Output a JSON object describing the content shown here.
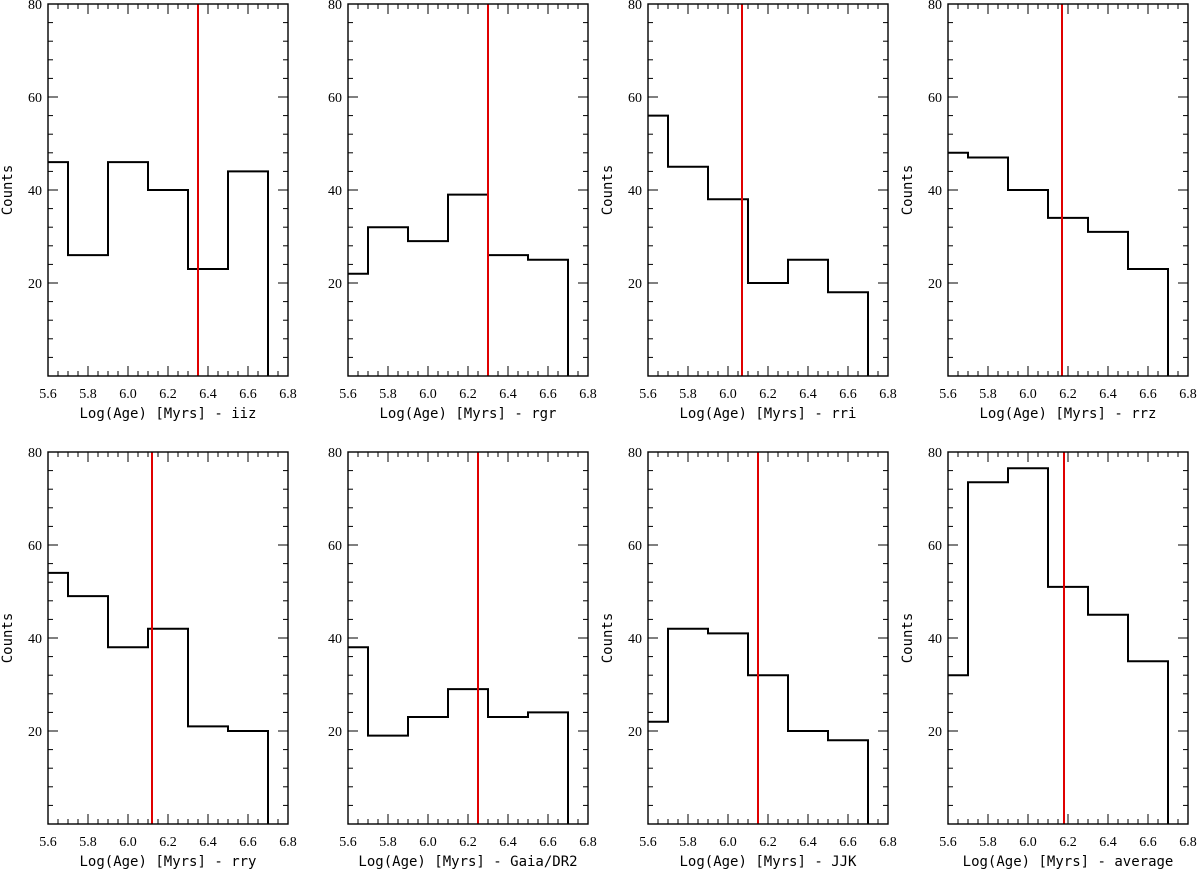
{
  "chart_data": [
    {
      "type": "histogram",
      "xlabel": "Log(Age) [Myrs] - iiz",
      "ylabel": "Counts",
      "xlim": [
        5.6,
        6.8
      ],
      "ylim": [
        0,
        80
      ],
      "xticks": [
        "5.6",
        "5.8",
        "6.0",
        "6.2",
        "6.4",
        "6.6",
        "6.8"
      ],
      "yticks": [
        "20",
        "40",
        "60",
        "80"
      ],
      "bin_edges": [
        5.6,
        5.7,
        5.9,
        6.1,
        6.3,
        6.5,
        6.7
      ],
      "counts": [
        46,
        26,
        46,
        40,
        23,
        44
      ],
      "marker_x": 6.35,
      "marker_color": "#e00000"
    },
    {
      "type": "histogram",
      "xlabel": "Log(Age) [Myrs] - rgr",
      "ylabel": "",
      "xlim": [
        5.6,
        6.8
      ],
      "ylim": [
        0,
        80
      ],
      "xticks": [
        "5.6",
        "5.8",
        "6.0",
        "6.2",
        "6.4",
        "6.6",
        "6.8"
      ],
      "yticks": [
        "20",
        "40",
        "60",
        "80"
      ],
      "bin_edges": [
        5.6,
        5.7,
        5.9,
        6.1,
        6.3,
        6.5,
        6.7
      ],
      "counts": [
        22,
        32,
        29,
        39,
        26,
        25
      ],
      "marker_x": 6.3,
      "marker_color": "#e00000"
    },
    {
      "type": "histogram",
      "xlabel": "Log(Age) [Myrs] - rri",
      "ylabel": "Counts",
      "xlim": [
        5.6,
        6.8
      ],
      "ylim": [
        0,
        80
      ],
      "xticks": [
        "5.6",
        "5.8",
        "6.0",
        "6.2",
        "6.4",
        "6.6",
        "6.8"
      ],
      "yticks": [
        "20",
        "40",
        "60",
        "80"
      ],
      "bin_edges": [
        5.6,
        5.7,
        5.9,
        6.1,
        6.3,
        6.5,
        6.7
      ],
      "counts": [
        56,
        45,
        38,
        20,
        25,
        18
      ],
      "marker_x": 6.07,
      "marker_color": "#e00000"
    },
    {
      "type": "histogram",
      "xlabel": "Log(Age) [Myrs] - rrz",
      "ylabel": "Counts",
      "xlim": [
        5.6,
        6.8
      ],
      "ylim": [
        0,
        80
      ],
      "xticks": [
        "5.6",
        "5.8",
        "6.0",
        "6.2",
        "6.4",
        "6.6",
        "6.8"
      ],
      "yticks": [
        "20",
        "40",
        "60",
        "80"
      ],
      "bin_edges": [
        5.6,
        5.7,
        5.9,
        6.1,
        6.3,
        6.5,
        6.7
      ],
      "counts": [
        48,
        47,
        40,
        34,
        31,
        23
      ],
      "marker_x": 6.17,
      "marker_color": "#e00000"
    },
    {
      "type": "histogram",
      "xlabel": "Log(Age) [Myrs] - rry",
      "ylabel": "Counts",
      "xlim": [
        5.6,
        6.8
      ],
      "ylim": [
        0,
        80
      ],
      "xticks": [
        "5.6",
        "5.8",
        "6.0",
        "6.2",
        "6.4",
        "6.6",
        "6.8"
      ],
      "yticks": [
        "20",
        "40",
        "60",
        "80"
      ],
      "bin_edges": [
        5.6,
        5.7,
        5.9,
        6.1,
        6.3,
        6.5,
        6.7
      ],
      "counts": [
        54,
        49,
        38,
        42,
        21,
        20
      ],
      "marker_x": 6.12,
      "marker_color": "#e00000"
    },
    {
      "type": "histogram",
      "xlabel": "Log(Age) [Myrs] - Gaia/DR2",
      "ylabel": "",
      "xlim": [
        5.6,
        6.8
      ],
      "ylim": [
        0,
        80
      ],
      "xticks": [
        "5.6",
        "5.8",
        "6.0",
        "6.2",
        "6.4",
        "6.6",
        "6.8"
      ],
      "yticks": [
        "20",
        "40",
        "60",
        "80"
      ],
      "bin_edges": [
        5.6,
        5.7,
        5.9,
        6.1,
        6.3,
        6.5,
        6.7
      ],
      "counts": [
        38,
        19,
        23,
        29,
        23,
        24
      ],
      "marker_x": 6.25,
      "marker_color": "#e00000"
    },
    {
      "type": "histogram",
      "xlabel": "Log(Age) [Myrs] - JJK",
      "ylabel": "Counts",
      "xlim": [
        5.6,
        6.8
      ],
      "ylim": [
        0,
        80
      ],
      "xticks": [
        "5.6",
        "5.8",
        "6.0",
        "6.2",
        "6.4",
        "6.6",
        "6.8"
      ],
      "yticks": [
        "20",
        "40",
        "60",
        "80"
      ],
      "bin_edges": [
        5.6,
        5.7,
        5.9,
        6.1,
        6.3,
        6.5,
        6.7
      ],
      "counts": [
        22,
        42,
        41,
        32,
        20,
        18
      ],
      "marker_x": 6.15,
      "marker_color": "#e00000"
    },
    {
      "type": "histogram",
      "xlabel": "Log(Age) [Myrs] - average",
      "ylabel": "Counts",
      "xlim": [
        5.6,
        6.8
      ],
      "ylim": [
        0,
        80
      ],
      "xticks": [
        "5.6",
        "5.8",
        "6.0",
        "6.2",
        "6.4",
        "6.6",
        "6.8"
      ],
      "yticks": [
        "20",
        "40",
        "60",
        "80"
      ],
      "bin_edges": [
        5.6,
        5.7,
        5.9,
        6.1,
        6.3,
        6.5,
        6.7
      ],
      "counts": [
        32,
        73.5,
        76.5,
        51,
        45,
        35
      ],
      "marker_x": 6.18,
      "marker_color": "#e00000"
    }
  ]
}
